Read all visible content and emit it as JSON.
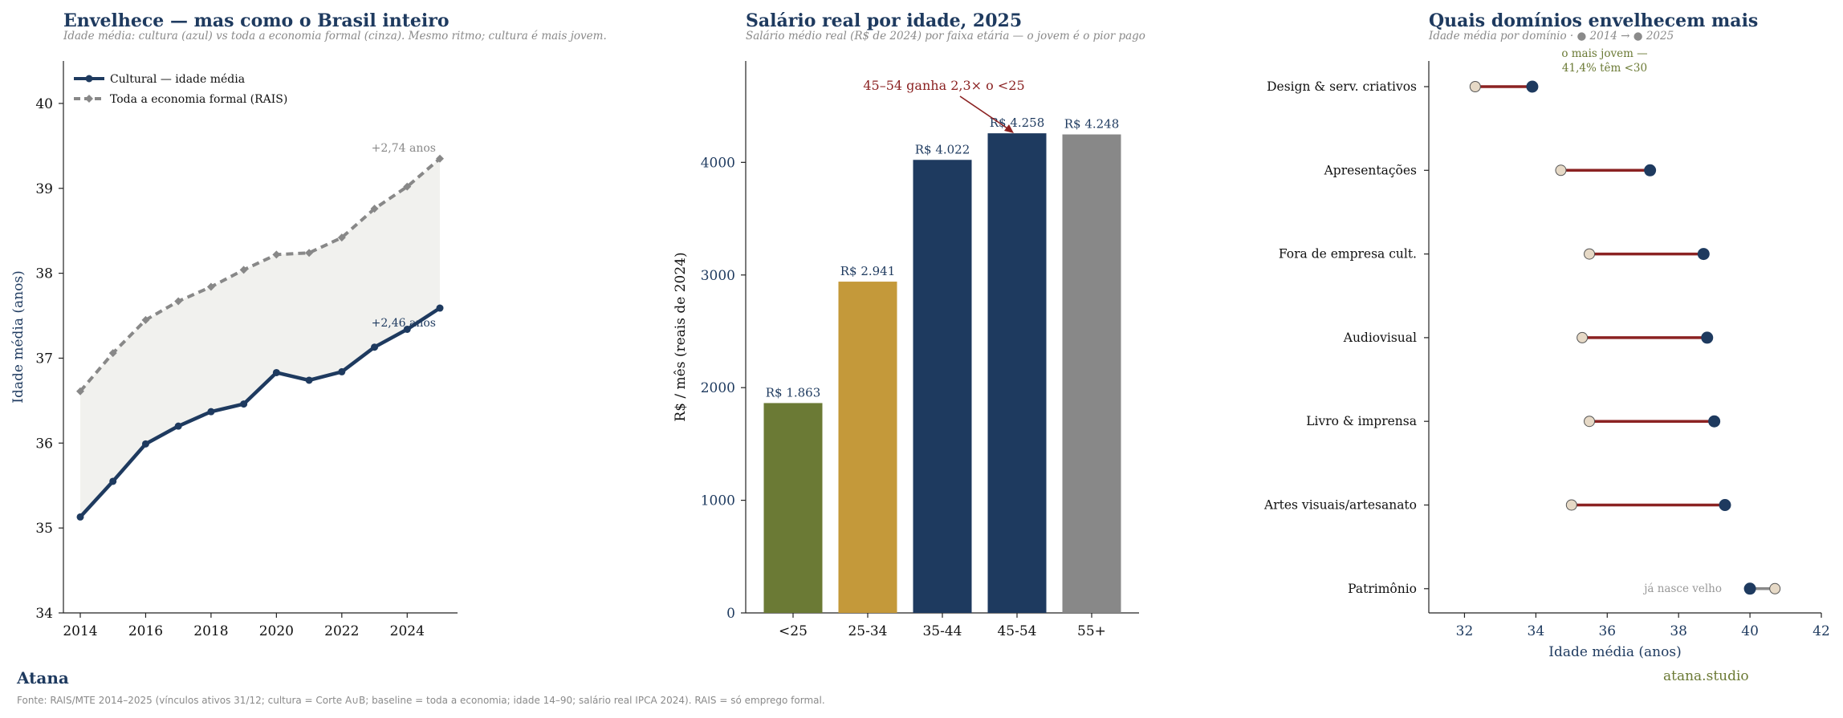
{
  "colors": {
    "navy": "#1e3a5f",
    "gray": "#888888",
    "olive": "#6b7a35",
    "gold": "#c4993a",
    "red": "#8b2222",
    "beige": "#e6d9c6",
    "band": "#f1f1ee"
  },
  "chart_data": [
    {
      "type": "line",
      "title": "Envelhece — mas como o Brasil inteiro",
      "subtitle": "Idade média: cultura (azul) vs toda a economia formal (cinza). Mesmo ritmo; cultura é mais jovem.",
      "xlabel": "",
      "ylabel": "Idade média (anos)",
      "x": [
        2014,
        2015,
        2016,
        2017,
        2018,
        2019,
        2020,
        2021,
        2022,
        2023,
        2024,
        2025
      ],
      "xticks": [
        "2014",
        "2016",
        "2018",
        "2020",
        "2022",
        "2024"
      ],
      "ylim": [
        34,
        40.5
      ],
      "yticks": [
        "34",
        "35",
        "36",
        "37",
        "38",
        "39",
        "40"
      ],
      "series": [
        {
          "name": "Cultural — idade média",
          "values": [
            35.13,
            35.55,
            35.99,
            36.2,
            36.37,
            36.46,
            36.83,
            36.74,
            36.84,
            37.13,
            37.34,
            37.59
          ]
        },
        {
          "name": "Toda a economia formal (RAIS)",
          "values": [
            36.61,
            37.06,
            37.45,
            37.67,
            37.84,
            38.04,
            38.22,
            38.24,
            38.42,
            38.76,
            39.02,
            39.35
          ]
        }
      ],
      "annotations": [
        "+2,74 anos",
        "+2,46 anos"
      ],
      "legend": "top-left",
      "grid": false
    },
    {
      "type": "bar",
      "title": "Salário real por idade, 2025",
      "subtitle": "Salário médio real (R$ de 2024) por faixa etária — o jovem é o pior pago",
      "xlabel": "",
      "ylabel": "R$ / mês (reais de 2024)",
      "categories": [
        "<25",
        "25-34",
        "35-44",
        "45-54",
        "55+"
      ],
      "values": [
        1863,
        2941,
        4022,
        4258,
        4248
      ],
      "value_labels": [
        "R$ 1.863",
        "R$ 2.941",
        "R$ 4.022",
        "R$ 4.258",
        "R$ 4.248"
      ],
      "ylim": [
        0,
        4900
      ],
      "yticks": [
        "0",
        "1000",
        "2000",
        "3000",
        "4000"
      ],
      "annotation": "45–54 ganha 2,3× o <25",
      "grid": false
    },
    {
      "type": "scatter",
      "title": "Quais domínios envelhecem mais",
      "subtitle": "Idade média por domínio · ● 2014  → ● 2025",
      "xlabel": "Idade média (anos)",
      "ylabel": "",
      "xlim": [
        31,
        42
      ],
      "xticks": [
        "32",
        "34",
        "36",
        "38",
        "40",
        "42"
      ],
      "categories": [
        "Design & serv. criativos",
        "Apresentações",
        "Fora de empresa cult.",
        "Audiovisual",
        "Livro & imprensa",
        "Artes visuais/artesanato",
        "Patrimônio"
      ],
      "series": [
        {
          "name": "2014",
          "values": [
            32.3,
            34.7,
            35.5,
            35.3,
            35.5,
            35.0,
            40.7
          ]
        },
        {
          "name": "2025",
          "values": [
            33.9,
            37.2,
            38.7,
            38.8,
            39.0,
            39.3,
            40.0
          ]
        }
      ],
      "annotations": [
        "o mais jovem —",
        "41,4% têm <30",
        "já nasce velho"
      ],
      "grid": false
    }
  ],
  "footer": {
    "brand": "Atana",
    "source": "Fonte: RAIS/MTE 2014–2025 (vínculos ativos 31/12; cultura = Corte A∪B; baseline = toda a economia; idade 14–90; salário real IPCA 2024). RAIS = só emprego formal.",
    "site": "atana.studio"
  }
}
